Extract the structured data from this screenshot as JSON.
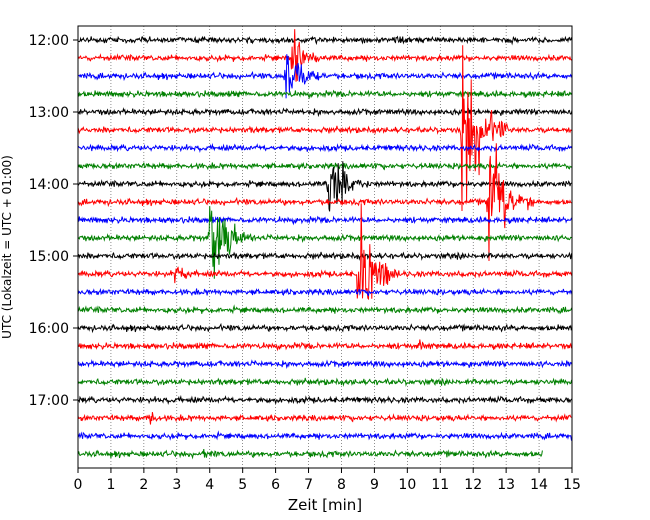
{
  "chart_data": {
    "type": "line",
    "chart_kind": "helicorder seismogram",
    "xlabel": "Zeit  [min]",
    "ylabel": "UTC (Lokalzeit = UTC + 01:00)",
    "xlim": [
      0,
      15
    ],
    "x_ticks": [
      0,
      1,
      2,
      3,
      4,
      5,
      6,
      7,
      8,
      9,
      10,
      11,
      12,
      13,
      14,
      15
    ],
    "y_hour_labels": [
      "12:00",
      "13:00",
      "14:00",
      "15:00",
      "16:00",
      "17:00"
    ],
    "y_hour_label_rows": [
      0,
      4,
      8,
      12,
      16,
      20
    ],
    "trace_count": 24,
    "trace_minutes_per_row": 15,
    "trace_colors": [
      "#000000",
      "#ff0000",
      "#0000ff",
      "#008000"
    ],
    "grid": "vertical dotted at each minute",
    "last_trace_end_min": 14.1,
    "events": [
      {
        "row": 1,
        "minute": 6.5,
        "amplitude": 2.2,
        "duration_min": 1.0
      },
      {
        "row": 2,
        "minute": 6.3,
        "amplitude": 2.2,
        "duration_min": 1.2
      },
      {
        "row": 5,
        "minute": 11.65,
        "amplitude": 5.5,
        "duration_min": 1.4
      },
      {
        "row": 8,
        "minute": 7.6,
        "amplitude": 2.8,
        "duration_min": 1.2
      },
      {
        "row": 9,
        "minute": 12.45,
        "amplitude": 4.5,
        "duration_min": 1.4
      },
      {
        "row": 11,
        "minute": 4.0,
        "amplitude": 3.2,
        "duration_min": 1.3
      },
      {
        "row": 13,
        "minute": 8.5,
        "amplitude": 3.8,
        "duration_min": 1.3
      },
      {
        "row": 13,
        "minute": 2.9,
        "amplitude": 0.8,
        "duration_min": 0.8
      },
      {
        "row": 17,
        "minute": 10.3,
        "amplitude": 0.7,
        "duration_min": 0.3
      },
      {
        "row": 21,
        "minute": 2.2,
        "amplitude": 0.7,
        "duration_min": 0.3
      },
      {
        "row": 23,
        "minute": 3.8,
        "amplitude": 0.7,
        "duration_min": 0.4
      }
    ]
  }
}
